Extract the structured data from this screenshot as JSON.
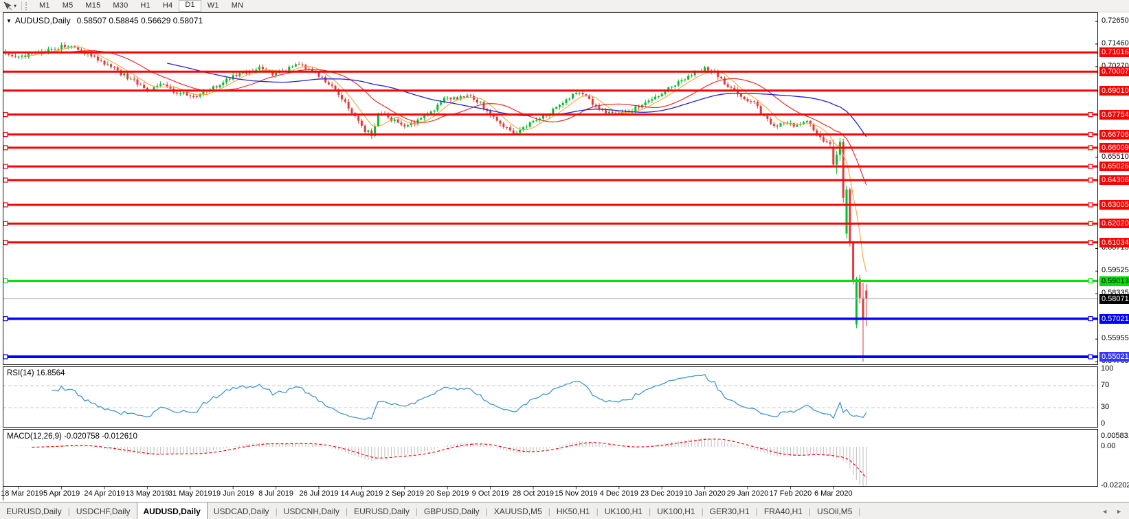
{
  "toolbar": {
    "timeframes": [
      {
        "label": "M1"
      },
      {
        "label": "M5"
      },
      {
        "label": "M15"
      },
      {
        "label": "M30"
      },
      {
        "label": "H1"
      },
      {
        "label": "H4"
      },
      {
        "label": "D1",
        "active": true
      },
      {
        "label": "W1"
      },
      {
        "label": "MN"
      }
    ]
  },
  "chart": {
    "title": "AUDUSD,Daily"
  },
  "indicators": {
    "rsi_label": "RSI(14)",
    "macd_label": "MACD(12,26,9)"
  },
  "tabs": {
    "items": [
      {
        "label": "EURUSD,Daily"
      },
      {
        "label": "USDCHF,Daily"
      },
      {
        "label": "AUDUSD,Daily",
        "active": true
      },
      {
        "label": "USDCAD,Daily"
      },
      {
        "label": "USDCNH,Daily"
      },
      {
        "label": "EURUSD,Daily"
      },
      {
        "label": "GBPUSD,Daily"
      },
      {
        "label": "XAUUSD,M5"
      },
      {
        "label": "HK50,H1"
      },
      {
        "label": "UK100,H1"
      },
      {
        "label": "UK100,H1"
      },
      {
        "label": "GER30,H1"
      },
      {
        "label": "FRA40,H1"
      },
      {
        "label": "USOil,M5"
      }
    ],
    "scroll_left_icon": "◄",
    "scroll_right_icon": "►"
  },
  "colors": {
    "up": "#00BE2D",
    "down": "#E33A3A",
    "hline_red": "#FF0000",
    "hline_green": "#00E206",
    "hline_blue": "#0000FF",
    "hline_blue_selected_bg": "#3535FF",
    "ma_fast": "#FFA235",
    "ma_mid": "#EF1A1A",
    "ma_slow": "#2222CC",
    "rsi": "#3E96D2",
    "rsi_level": "#C9C9C9",
    "macd_hist": "#C6C6C6",
    "macd_signal": "#FF0000",
    "current_line": "#B4B4B4",
    "current_label_bg": "#000000",
    "border": "#141414"
  },
  "chart_data": {
    "type": "candlestick",
    "symbol": "AUDUSD",
    "timeframe": "Daily",
    "bars": 262,
    "current_ohlc": {
      "open": 0.58507,
      "high": 0.58845,
      "low": 0.56629,
      "close": 0.58071
    },
    "y_ticks": [
      0.7265,
      0.7146,
      0.7027,
      0.6551,
      0.60715,
      0.59525,
      0.58335,
      0.55955,
      0.54765
    ],
    "hlines": [
      {
        "price": 0.71016,
        "color": "red"
      },
      {
        "price": 0.70007,
        "color": "red"
      },
      {
        "price": 0.6901,
        "color": "red"
      },
      {
        "price": 0.67754,
        "color": "red",
        "handles": true
      },
      {
        "price": 0.66706,
        "color": "red",
        "handles": true
      },
      {
        "price": 0.66009,
        "color": "red",
        "handles": true
      },
      {
        "price": 0.65026,
        "color": "red",
        "handles": true
      },
      {
        "price": 0.64306,
        "color": "red",
        "handles": true
      },
      {
        "price": 0.63005,
        "color": "red",
        "handles": true
      },
      {
        "price": 0.6202,
        "color": "red",
        "handles": true
      },
      {
        "price": 0.61034,
        "color": "red",
        "handles": true
      },
      {
        "price": 0.59013,
        "color": "green",
        "handles": true
      },
      {
        "price": 0.57021,
        "color": "blue",
        "handles": true
      },
      {
        "price": 0.55021,
        "color": "blue",
        "handles": true,
        "selected": true
      }
    ],
    "current_price": 0.58071,
    "x_labels": [
      "18 Mar 2019",
      "5 Apr 2019",
      "24 Apr 2019",
      "13 May 2019",
      "31 May 2019",
      "19 Jun 2019",
      "8 Jul 2019",
      "26 Jul 2019",
      "14 Aug 2019",
      "2 Sep 2019",
      "20 Sep 2019",
      "9 Oct 2019",
      "28 Oct 2019",
      "15 Nov 2019",
      "4 Dec 2019",
      "23 Dec 2019",
      "10 Jan 2020",
      "29 Jan 2020",
      "17 Feb 2020",
      "6 Mar 2020"
    ],
    "price_anchors": [
      [
        0,
        0.709
      ],
      [
        4,
        0.7075
      ],
      [
        9,
        0.7098
      ],
      [
        14,
        0.7118
      ],
      [
        19,
        0.714
      ],
      [
        23,
        0.7105
      ],
      [
        28,
        0.7062
      ],
      [
        33,
        0.7012
      ],
      [
        38,
        0.6962
      ],
      [
        43,
        0.6906
      ],
      [
        47,
        0.693
      ],
      [
        52,
        0.6892
      ],
      [
        57,
        0.6868
      ],
      [
        61,
        0.6902
      ],
      [
        65,
        0.6936
      ],
      [
        69,
        0.6974
      ],
      [
        73,
        0.7
      ],
      [
        77,
        0.7022
      ],
      [
        81,
        0.6988
      ],
      [
        85,
        0.701
      ],
      [
        89,
        0.7042
      ],
      [
        93,
        0.7002
      ],
      [
        97,
        0.6952
      ],
      [
        100,
        0.6902
      ],
      [
        103,
        0.6842
      ],
      [
        106,
        0.6762
      ],
      [
        109,
        0.6692
      ],
      [
        111,
        0.6672
      ],
      [
        113,
        0.6782
      ],
      [
        116,
        0.6762
      ],
      [
        119,
        0.6732
      ],
      [
        122,
        0.6718
      ],
      [
        125,
        0.6742
      ],
      [
        128,
        0.6776
      ],
      [
        131,
        0.6822
      ],
      [
        134,
        0.6868
      ],
      [
        137,
        0.6854
      ],
      [
        140,
        0.6886
      ],
      [
        143,
        0.685
      ],
      [
        146,
        0.6792
      ],
      [
        149,
        0.6746
      ],
      [
        152,
        0.6706
      ],
      [
        155,
        0.6676
      ],
      [
        158,
        0.6712
      ],
      [
        161,
        0.6748
      ],
      [
        164,
        0.6776
      ],
      [
        167,
        0.6812
      ],
      [
        170,
        0.6856
      ],
      [
        173,
        0.689
      ],
      [
        176,
        0.6862
      ],
      [
        179,
        0.6822
      ],
      [
        182,
        0.6792
      ],
      [
        185,
        0.6774
      ],
      [
        188,
        0.6786
      ],
      [
        191,
        0.681
      ],
      [
        194,
        0.6838
      ],
      [
        197,
        0.6866
      ],
      [
        200,
        0.6896
      ],
      [
        203,
        0.693
      ],
      [
        206,
        0.6962
      ],
      [
        209,
        0.6992
      ],
      [
        212,
        0.7018
      ],
      [
        215,
        0.6996
      ],
      [
        218,
        0.6942
      ],
      [
        221,
        0.6896
      ],
      [
        224,
        0.6862
      ],
      [
        227,
        0.6838
      ],
      [
        230,
        0.6762
      ],
      [
        233,
        0.6712
      ],
      [
        236,
        0.674
      ],
      [
        239,
        0.6714
      ],
      [
        242,
        0.6746
      ],
      [
        245,
        0.6702
      ],
      [
        248,
        0.6642
      ],
      [
        251,
        0.6602
      ]
    ],
    "tail_candles": [
      [
        0.6602,
        0.6642,
        0.6498,
        0.6512
      ],
      [
        0.6512,
        0.6582,
        0.6462,
        0.6564
      ],
      [
        0.6564,
        0.6652,
        0.6532,
        0.6632
      ],
      [
        0.6632,
        0.6648,
        0.6312,
        0.6338
      ],
      [
        0.615,
        0.6402,
        0.6122,
        0.6382
      ],
      [
        0.6382,
        0.6392,
        0.6082,
        0.6102
      ],
      [
        0.6102,
        0.6112,
        0.5882,
        0.5902
      ],
      [
        0.5672,
        0.5922,
        0.5652,
        0.5912
      ],
      [
        0.5912,
        0.5932,
        0.5782,
        0.5812
      ],
      [
        0.5812,
        0.5892,
        0.5476,
        0.5702
      ],
      [
        0.58507,
        0.58845,
        0.56629,
        0.58071
      ]
    ],
    "ma_periods": {
      "fast": 7,
      "mid": 21,
      "slow": 50
    },
    "rsi": {
      "period": 14,
      "last_value": 16.8564,
      "levels": [
        100,
        70,
        30,
        0
      ],
      "range": [
        0,
        100
      ]
    },
    "macd": {
      "fast": 12,
      "slow": 26,
      "signal": 9,
      "main_value": -0.020758,
      "signal_value": -0.01261,
      "axis_values": [
        0.005831,
        0,
        -0.022024
      ]
    }
  }
}
